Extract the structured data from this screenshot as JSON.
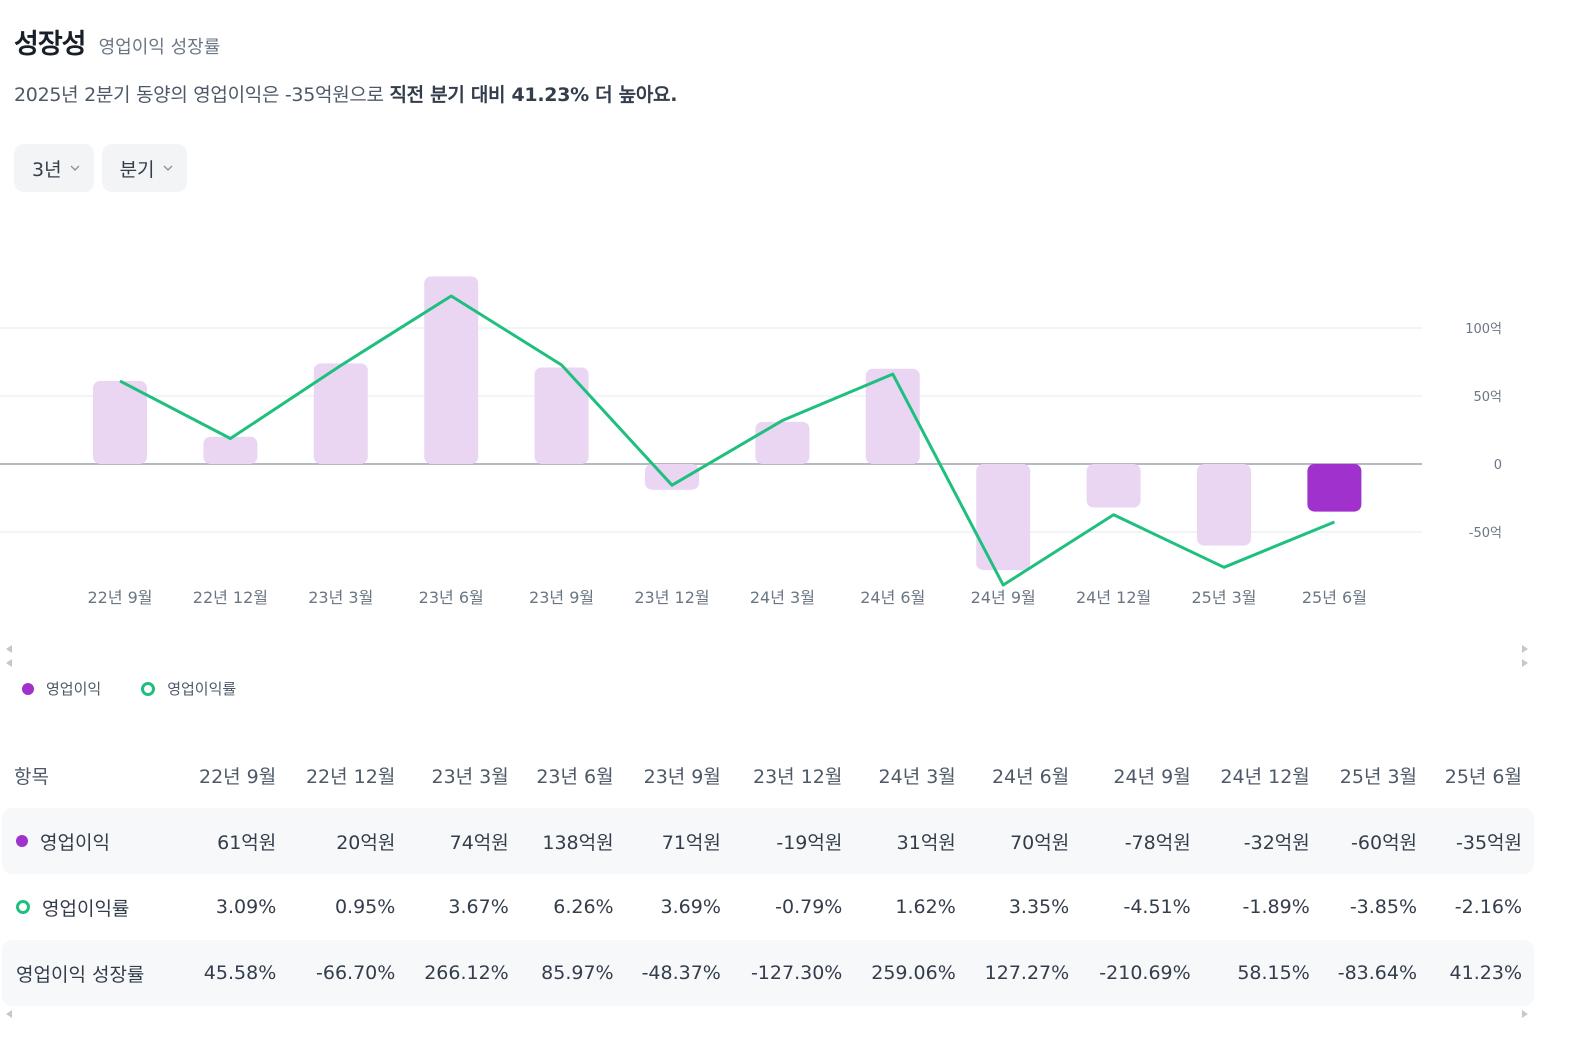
{
  "header": {
    "title": "성장성",
    "subtitle": "영업이익 성장률"
  },
  "summary": {
    "prefix": "2025년 2분기 동양의 영업이익은 -35억원으로 ",
    "emphasis": "직전 분기 대비 41.23% 더 높아요."
  },
  "filters": {
    "period": "3년",
    "interval": "분기"
  },
  "colors": {
    "bar_highlight": "#a131cc",
    "bar_faded": "#ead6f3",
    "line": "#1fbf7d",
    "positive": "#e42939",
    "negative": "#3182f6"
  },
  "chart_data": {
    "type": "bar",
    "categories": [
      "22년 9월",
      "22년 12월",
      "23년 3월",
      "23년 6월",
      "23년 9월",
      "23년 12월",
      "24년 3월",
      "24년 6월",
      "24년 9월",
      "24년 12월",
      "25년 3월",
      "25년 6월"
    ],
    "series": [
      {
        "name": "영업이익",
        "unit": "억원",
        "values": [
          61,
          20,
          74,
          138,
          71,
          -19,
          31,
          70,
          -78,
          -32,
          -60,
          -35
        ]
      },
      {
        "name": "영업이익률",
        "unit": "%",
        "type": "line",
        "values": [
          3.09,
          0.95,
          3.67,
          6.26,
          3.69,
          -0.79,
          1.62,
          3.35,
          -4.51,
          -1.89,
          -3.85,
          -2.16
        ]
      }
    ],
    "highlight_index": 11,
    "y_ticks": [
      100,
      50,
      0,
      -50
    ],
    "y_tick_labels": [
      "100억",
      "50억",
      "0",
      "-50억"
    ],
    "ylim": [
      -80,
      140
    ]
  },
  "legend": {
    "bar": "영업이익",
    "line": "영업이익률"
  },
  "table": {
    "header_label": "항목",
    "columns": [
      "22년 9월",
      "22년 12월",
      "23년 3월",
      "23년 6월",
      "23년 9월",
      "23년 12월",
      "24년 3월",
      "24년 6월",
      "24년 9월",
      "24년 12월",
      "25년 3월",
      "25년 6월"
    ],
    "rows": [
      {
        "label": "영업이익",
        "values": [
          "61억원",
          "20억원",
          "74억원",
          "138억원",
          "71억원",
          "-19억원",
          "31억원",
          "70억원",
          "-78억원",
          "-32억원",
          "-60억원",
          "-35억원"
        ]
      },
      {
        "label": "영업이익률",
        "values": [
          "3.09%",
          "0.95%",
          "3.67%",
          "6.26%",
          "3.69%",
          "-0.79%",
          "1.62%",
          "3.35%",
          "-4.51%",
          "-1.89%",
          "-3.85%",
          "-2.16%"
        ]
      },
      {
        "label": "영업이익 성장률",
        "values": [
          "45.58%",
          "-66.70%",
          "266.12%",
          "85.97%",
          "-48.37%",
          "-127.30%",
          "259.06%",
          "127.27%",
          "-210.69%",
          "58.15%",
          "-83.64%",
          "41.23%"
        ]
      }
    ]
  }
}
